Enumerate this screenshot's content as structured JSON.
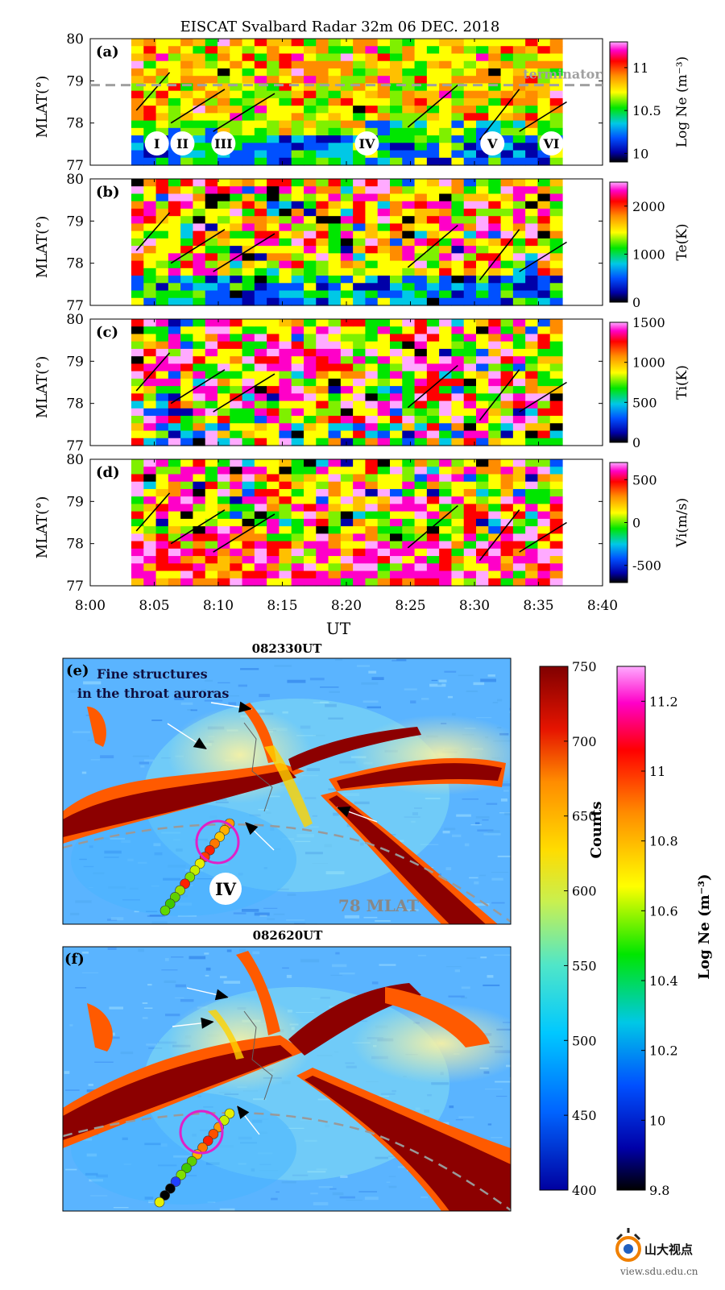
{
  "chart_data": [
    {
      "type": "heatmap",
      "panel": "(a)",
      "title": "EISCAT Svalbard Radar 32m   06 DEC. 2018",
      "ylabel": "MLAT(°)",
      "ylim": [
        77,
        80
      ],
      "yticks": [
        "77",
        "78",
        "79",
        "80"
      ],
      "xlim_minutes": [
        0,
        40
      ],
      "colorbar": {
        "label": "Log Ne (m⁻³)",
        "ticks": [
          "10",
          "10.5",
          "11"
        ],
        "range": [
          9.9,
          11.3
        ]
      },
      "annotations": {
        "terminator": "terminator",
        "roman": [
          "I",
          "II",
          "III",
          "IV",
          "V",
          "VI"
        ]
      }
    },
    {
      "type": "heatmap",
      "panel": "(b)",
      "ylabel": "MLAT(°)",
      "ylim": [
        77,
        80
      ],
      "yticks": [
        "77",
        "78",
        "79",
        "80"
      ],
      "colorbar": {
        "label": "Te(K)",
        "ticks": [
          "0",
          "1000",
          "2000"
        ],
        "range": [
          0,
          2500
        ]
      }
    },
    {
      "type": "heatmap",
      "panel": "(c)",
      "ylabel": "MLAT(°)",
      "ylim": [
        77,
        80
      ],
      "yticks": [
        "77",
        "78",
        "79",
        "80"
      ],
      "colorbar": {
        "label": "Ti(K)",
        "ticks": [
          "0",
          "500",
          "1000",
          "1500"
        ],
        "range": [
          0,
          1500
        ]
      }
    },
    {
      "type": "heatmap",
      "panel": "(d)",
      "ylabel": "MLAT(°)",
      "ylim": [
        77,
        80
      ],
      "yticks": [
        "77",
        "78",
        "79",
        "80"
      ],
      "xlabel": "UT",
      "xticks": [
        "8:00",
        "8:05",
        "8:10",
        "8:15",
        "8:20",
        "8:25",
        "8:30",
        "8:35",
        "8:40"
      ],
      "colorbar": {
        "label": "Vi(m/s)",
        "ticks": [
          "-500",
          "0",
          "500"
        ],
        "range": [
          -700,
          700
        ]
      }
    }
  ],
  "images": {
    "e": {
      "panel": "(e)",
      "title": "082330UT",
      "annotation": "Fine structures\nin the throat auroras",
      "roman": "IV",
      "mlat_label": "78 MLAT"
    },
    "f": {
      "panel": "(f)",
      "title": "082620UT"
    }
  },
  "colorbar_counts": {
    "label": "Counts",
    "ticks": [
      "400",
      "450",
      "500",
      "550",
      "600",
      "650",
      "700",
      "750"
    ]
  },
  "colorbar_ne": {
    "label": "Log Ne (m⁻³)",
    "ticks": [
      "9.8",
      "10",
      "10.2",
      "10.4",
      "10.6",
      "10.8",
      "11",
      "11.2"
    ]
  },
  "logo": {
    "text": "山大视点",
    "url": "view.sdu.edu.cn"
  }
}
